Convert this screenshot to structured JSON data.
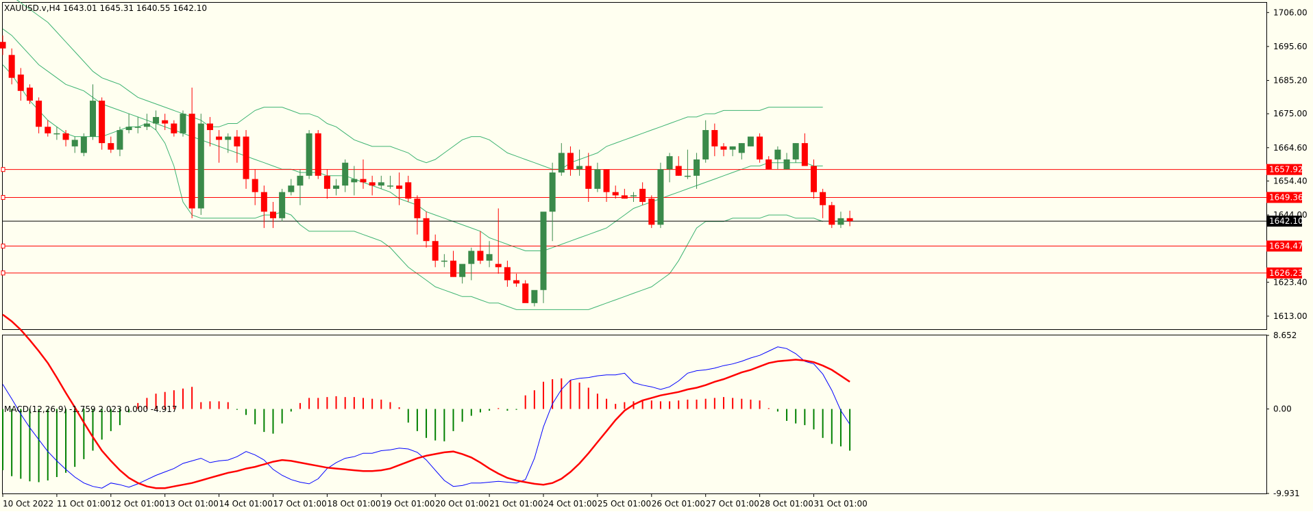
{
  "colors": {
    "background": "#fffff0",
    "frame": "#000000",
    "bull": "#3a8a4a",
    "bear": "#ff0000",
    "bands": "#3cb371",
    "level": "#ff0000",
    "price_line": "#000000",
    "macd_main": "#0000ff",
    "macd_signal": "#ff0000"
  },
  "header": {
    "symbol_text": "XAUUSD.v,H4  1643.01 1645.31 1640.55 1642.10"
  },
  "chart_data": [
    {
      "type": "candlestick",
      "title": "XAUUSD.v,H4  1643.01 1645.31 1640.55 1642.10",
      "x_labels": [
        "10 Oct 2022",
        "11 Oct 01:00",
        "12 Oct 01:00",
        "13 Oct 01:00",
        "14 Oct 01:00",
        "17 Oct 01:00",
        "18 Oct 01:00",
        "19 Oct 01:00",
        "20 Oct 01:00",
        "21 Oct 01:00",
        "24 Oct 01:00",
        "25 Oct 01:00",
        "26 Oct 01:00",
        "27 Oct 01:00",
        "28 Oct 01:00",
        "31 Oct 01:00"
      ],
      "x_label_bars": [
        0,
        6,
        12,
        18,
        24,
        30,
        36,
        42,
        48,
        54,
        60,
        66,
        72,
        78,
        84,
        90
      ],
      "y_ticks": [
        "1706.00",
        "1695.60",
        "1685.20",
        "1675.00",
        "1664.60",
        "1654.40",
        "1644.00",
        "1623.40",
        "1613.00"
      ],
      "ylim": [
        1609.0,
        1709.0
      ],
      "ohlc": [
        [
          1697,
          1699,
          1693,
          1695
        ],
        [
          1693,
          1695,
          1684,
          1686
        ],
        [
          1687,
          1689,
          1679,
          1682
        ],
        [
          1683,
          1684,
          1678,
          1679
        ],
        [
          1679,
          1680,
          1669,
          1671
        ],
        [
          1671,
          1673,
          1668,
          1669
        ],
        [
          1669,
          1671,
          1667,
          1669
        ],
        [
          1669,
          1670,
          1665,
          1667
        ],
        [
          1665,
          1668,
          1663,
          1667
        ],
        [
          1663,
          1669,
          1662,
          1668
        ],
        [
          1668,
          1684,
          1667,
          1679
        ],
        [
          1679,
          1680,
          1664,
          1666
        ],
        [
          1666,
          1668,
          1663,
          1664
        ],
        [
          1664,
          1671,
          1662,
          1670
        ],
        [
          1670,
          1675,
          1669,
          1671
        ],
        [
          1671,
          1674,
          1669,
          1671
        ],
        [
          1671,
          1675,
          1670,
          1672
        ],
        [
          1672,
          1676,
          1670,
          1674
        ],
        [
          1673,
          1675,
          1670,
          1672
        ],
        [
          1672,
          1673,
          1668,
          1669
        ],
        [
          1669,
          1676,
          1668,
          1675
        ],
        [
          1675,
          1683,
          1643,
          1646
        ],
        [
          1646,
          1675,
          1644,
          1672
        ],
        [
          1672,
          1674,
          1665,
          1670
        ],
        [
          1668,
          1670,
          1660,
          1667
        ],
        [
          1667,
          1669,
          1663,
          1668
        ],
        [
          1668,
          1670,
          1660,
          1665
        ],
        [
          1668,
          1670,
          1652,
          1655
        ],
        [
          1655,
          1658,
          1647,
          1651
        ],
        [
          1651,
          1653,
          1640,
          1645
        ],
        [
          1645,
          1648,
          1640,
          1643
        ],
        [
          1643,
          1652,
          1642,
          1651
        ],
        [
          1651,
          1655,
          1650,
          1653
        ],
        [
          1653,
          1658,
          1647,
          1656
        ],
        [
          1656,
          1670,
          1655,
          1669
        ],
        [
          1669,
          1670,
          1655,
          1656
        ],
        [
          1656,
          1658,
          1649,
          1652
        ],
        [
          1652,
          1655,
          1650,
          1653
        ],
        [
          1653,
          1661,
          1651,
          1660
        ],
        [
          1654,
          1659,
          1650,
          1655
        ],
        [
          1655,
          1661,
          1652,
          1654
        ],
        [
          1654,
          1656,
          1650,
          1653
        ],
        [
          1653,
          1656,
          1652,
          1654
        ],
        [
          1653,
          1656,
          1652,
          1653
        ],
        [
          1653,
          1657,
          1647,
          1652
        ],
        [
          1654,
          1656,
          1648,
          1649
        ],
        [
          1649,
          1650,
          1638,
          1643
        ],
        [
          1643,
          1645,
          1634,
          1636
        ],
        [
          1636,
          1638,
          1628,
          1630
        ],
        [
          1630,
          1632,
          1628,
          1630
        ],
        [
          1630,
          1633,
          1625,
          1625
        ],
        [
          1625,
          1628,
          1623,
          1629
        ],
        [
          1629,
          1634,
          1624,
          1633
        ],
        [
          1633,
          1639,
          1629,
          1630
        ],
        [
          1630,
          1636,
          1628,
          1632
        ],
        [
          1629,
          1646,
          1626,
          1628
        ],
        [
          1628,
          1630,
          1622,
          1624
        ],
        [
          1624,
          1626,
          1622,
          1623
        ],
        [
          1623,
          1624,
          1618,
          1617
        ],
        [
          1617,
          1620,
          1616,
          1621
        ],
        [
          1621,
          1644,
          1617,
          1645
        ],
        [
          1645,
          1660,
          1636,
          1657
        ],
        [
          1657,
          1666,
          1656,
          1663
        ],
        [
          1663,
          1665,
          1656,
          1658
        ],
        [
          1658,
          1664,
          1656,
          1659
        ],
        [
          1659,
          1663,
          1648,
          1652
        ],
        [
          1652,
          1660,
          1651,
          1658
        ],
        [
          1658,
          1658,
          1648,
          1651
        ],
        [
          1651,
          1653,
          1649,
          1650
        ],
        [
          1650,
          1652,
          1649,
          1649
        ],
        [
          1650,
          1651,
          1648,
          1650
        ],
        [
          1652,
          1654,
          1647,
          1648
        ],
        [
          1649,
          1650,
          1640,
          1641
        ],
        [
          1641,
          1660,
          1640,
          1658
        ],
        [
          1658,
          1663,
          1654,
          1662
        ],
        [
          1659,
          1662,
          1656,
          1656
        ],
        [
          1656,
          1664,
          1655,
          1656
        ],
        [
          1656,
          1663,
          1652,
          1661
        ],
        [
          1661,
          1673,
          1660,
          1670
        ],
        [
          1670,
          1672,
          1662,
          1665
        ],
        [
          1665,
          1666,
          1662,
          1664
        ],
        [
          1664,
          1665,
          1662,
          1665
        ],
        [
          1663,
          1666,
          1661,
          1666
        ],
        [
          1665,
          1668,
          1665,
          1668
        ],
        [
          1668,
          1669,
          1660,
          1661
        ],
        [
          1661,
          1662,
          1658,
          1658
        ],
        [
          1661,
          1665,
          1658,
          1664
        ],
        [
          1658,
          1663,
          1658,
          1661
        ],
        [
          1661,
          1666,
          1660,
          1666
        ],
        [
          1666,
          1669,
          1659,
          1659
        ],
        [
          1659,
          1661,
          1649,
          1651
        ],
        [
          1651,
          1652,
          1643,
          1647
        ],
        [
          1647,
          1648,
          1640,
          1641
        ],
        [
          1641,
          1645,
          1640,
          1643
        ],
        [
          1643.01,
          1645.31,
          1640.55,
          1642.1
        ]
      ],
      "bollinger": {
        "upper": [
          1712,
          1711,
          1709,
          1707,
          1705,
          1703,
          1700,
          1697,
          1694,
          1691,
          1688,
          1686,
          1685,
          1684,
          1682,
          1680,
          1679,
          1678,
          1677,
          1676,
          1675,
          1674,
          1673,
          1671,
          1671,
          1672,
          1672,
          1674,
          1676,
          1677,
          1677,
          1677,
          1676,
          1675,
          1675,
          1674,
          1672,
          1671,
          1669,
          1667,
          1666,
          1665,
          1665,
          1665,
          1664,
          1663,
          1661,
          1660,
          1661,
          1663,
          1665,
          1667,
          1668,
          1668,
          1667,
          1665,
          1663,
          1662,
          1661,
          1660,
          1659,
          1658,
          1658,
          1660,
          1661,
          1662,
          1663,
          1665,
          1666,
          1667,
          1668,
          1669,
          1670,
          1671,
          1672,
          1673,
          1674,
          1674,
          1675,
          1675,
          1676,
          1676,
          1676,
          1676,
          1676,
          1677,
          1677,
          1677,
          1677,
          1677,
          1677,
          1677
        ],
        "middle": [
          1701,
          1699,
          1696,
          1693,
          1690,
          1688,
          1686,
          1684,
          1683,
          1682,
          1680,
          1678,
          1677,
          1676,
          1675,
          1674,
          1673,
          1672,
          1671,
          1670,
          1669,
          1668,
          1667,
          1666,
          1665,
          1664,
          1663,
          1662,
          1661,
          1660,
          1659,
          1658,
          1658,
          1657,
          1657,
          1657,
          1656,
          1656,
          1656,
          1655,
          1654,
          1653,
          1652,
          1651,
          1649,
          1648,
          1647,
          1645,
          1644,
          1643,
          1642,
          1641,
          1640,
          1639,
          1637,
          1636,
          1635,
          1634,
          1633,
          1633,
          1633,
          1634,
          1635,
          1636,
          1637,
          1638,
          1639,
          1640,
          1642,
          1644,
          1646,
          1647,
          1648,
          1649,
          1650,
          1651,
          1652,
          1653,
          1654,
          1655,
          1656,
          1657,
          1658,
          1659,
          1659,
          1660,
          1660,
          1660,
          1660,
          1660,
          1659,
          1659
        ],
        "lower": [
          1690,
          1687,
          1683,
          1679,
          1676,
          1673,
          1671,
          1669,
          1668,
          1668,
          1668,
          1668,
          1669,
          1670,
          1671,
          1671,
          1672,
          1670,
          1666,
          1659,
          1648,
          1644,
          1643,
          1643,
          1643,
          1643,
          1643,
          1643,
          1643,
          1644,
          1644,
          1645,
          1644,
          1641,
          1639,
          1639,
          1639,
          1639,
          1639,
          1639,
          1638,
          1637,
          1636,
          1634,
          1631,
          1628,
          1626,
          1624,
          1622,
          1621,
          1620,
          1619,
          1619,
          1618,
          1617,
          1617,
          1616,
          1615,
          1615,
          1615,
          1615,
          1615,
          1615,
          1615,
          1615,
          1615,
          1616,
          1617,
          1618,
          1619,
          1620,
          1621,
          1622,
          1624,
          1626,
          1630,
          1635,
          1640,
          1642,
          1642,
          1642,
          1643,
          1643,
          1643,
          1643,
          1644,
          1644,
          1644,
          1643,
          1643,
          1643,
          1642
        ]
      },
      "levels": [
        {
          "value": 1657.92,
          "label": "1657.92"
        },
        {
          "value": 1649.36,
          "label": "1649.36"
        },
        {
          "value": 1634.47,
          "label": "1634.47"
        },
        {
          "value": 1626.23,
          "label": "1626.23"
        }
      ],
      "current_price": {
        "value": 1642.1,
        "label": "1642.10"
      }
    },
    {
      "type": "macd",
      "title": "MACD(12,26,9) -1.759 2.023 0.000 -4.917",
      "y_ticks": [
        "8.652",
        "0.00",
        "-9.931"
      ],
      "ylim": [
        -9.931,
        8.652
      ],
      "histogram": [
        -7.2,
        -7.9,
        -8.2,
        -8.5,
        -8.6,
        -8.4,
        -8.0,
        -7.5,
        -6.8,
        -5.9,
        -4.9,
        -3.6,
        -2.6,
        -1.9,
        -0.4,
        0.7,
        1.3,
        1.8,
        2.0,
        2.2,
        2.4,
        2.6,
        0.8,
        0.9,
        0.9,
        0.8,
        -0.1,
        -0.7,
        -1.8,
        -2.7,
        -2.9,
        -1.7,
        -0.3,
        0.7,
        1.3,
        1.3,
        1.4,
        1.5,
        1.4,
        1.4,
        1.3,
        1.2,
        1.1,
        0.8,
        0.2,
        -1.6,
        -2.6,
        -3.4,
        -3.7,
        -3.8,
        -2.6,
        -1.5,
        -0.8,
        -0.4,
        -0.2,
        0.1,
        -0.2,
        -0.1,
        1.6,
        2.2,
        3.2,
        3.5,
        3.6,
        3.4,
        3.1,
        2.5,
        1.8,
        1.2,
        0.6,
        0.8,
        0.9,
        1.0,
        1.0,
        0.9,
        0.9,
        1.0,
        1.1,
        1.1,
        1.2,
        1.3,
        1.4,
        1.3,
        1.2,
        1.1,
        1.0,
        0.1,
        -0.3,
        -1.4,
        -1.7,
        -1.9,
        -2.4,
        -3.4,
        -4.1,
        -4.4,
        -4.9
      ],
      "main": [
        2.9,
        1.2,
        -0.6,
        -2.2,
        -3.6,
        -5.0,
        -6.1,
        -7.1,
        -8.0,
        -8.7,
        -9.1,
        -9.3,
        -8.7,
        -8.9,
        -9.2,
        -8.8,
        -8.3,
        -7.8,
        -7.4,
        -7.0,
        -6.4,
        -6.1,
        -5.8,
        -6.3,
        -6.1,
        -6.0,
        -5.6,
        -5.0,
        -5.4,
        -6.0,
        -7.1,
        -7.8,
        -8.3,
        -8.6,
        -8.8,
        -8.2,
        -7.0,
        -6.3,
        -5.8,
        -5.6,
        -5.2,
        -5.2,
        -4.9,
        -4.8,
        -4.6,
        -4.7,
        -5.1,
        -6.0,
        -7.2,
        -8.4,
        -9.1,
        -9.0,
        -8.7,
        -8.7,
        -8.6,
        -8.5,
        -8.6,
        -8.7,
        -8.3,
        -5.8,
        -2.1,
        0.6,
        2.3,
        3.4,
        3.6,
        3.7,
        3.9,
        4.0,
        4.0,
        4.2,
        3.1,
        2.8,
        2.6,
        2.3,
        2.6,
        3.3,
        4.2,
        4.5,
        4.6,
        4.8,
        5.1,
        5.3,
        5.6,
        6.0,
        6.3,
        6.8,
        7.3,
        7.1,
        6.5,
        5.6,
        5.3,
        4.1,
        2.2,
        -0.2,
        -1.8
      ],
      "signal": [
        11.1,
        10.3,
        9.3,
        8.1,
        6.8,
        5.4,
        3.7,
        1.9,
        0.2,
        -1.6,
        -3.3,
        -4.9,
        -6.1,
        -7.2,
        -8.1,
        -8.7,
        -9.1,
        -9.3,
        -9.3,
        -9.1,
        -8.9,
        -8.7,
        -8.4,
        -8.1,
        -7.8,
        -7.5,
        -7.3,
        -7.0,
        -6.8,
        -6.5,
        -6.2,
        -6.0,
        -6.1,
        -6.3,
        -6.5,
        -6.7,
        -6.9,
        -7.0,
        -7.1,
        -7.2,
        -7.3,
        -7.3,
        -7.2,
        -7.0,
        -6.6,
        -6.2,
        -5.8,
        -5.5,
        -5.3,
        -5.1,
        -5.0,
        -5.3,
        -5.7,
        -6.3,
        -7.0,
        -7.6,
        -8.1,
        -8.4,
        -8.6,
        -8.8,
        -8.9,
        -8.7,
        -8.2,
        -7.4,
        -6.4,
        -5.2,
        -3.9,
        -2.6,
        -1.3,
        -0.2,
        0.5,
        1.0,
        1.3,
        1.6,
        1.8,
        2.0,
        2.3,
        2.5,
        2.8,
        3.2,
        3.5,
        3.9,
        4.3,
        4.6,
        5.0,
        5.4,
        5.6,
        5.7,
        5.8,
        5.7,
        5.5,
        5.1,
        4.6,
        3.9,
        3.2
      ]
    }
  ]
}
